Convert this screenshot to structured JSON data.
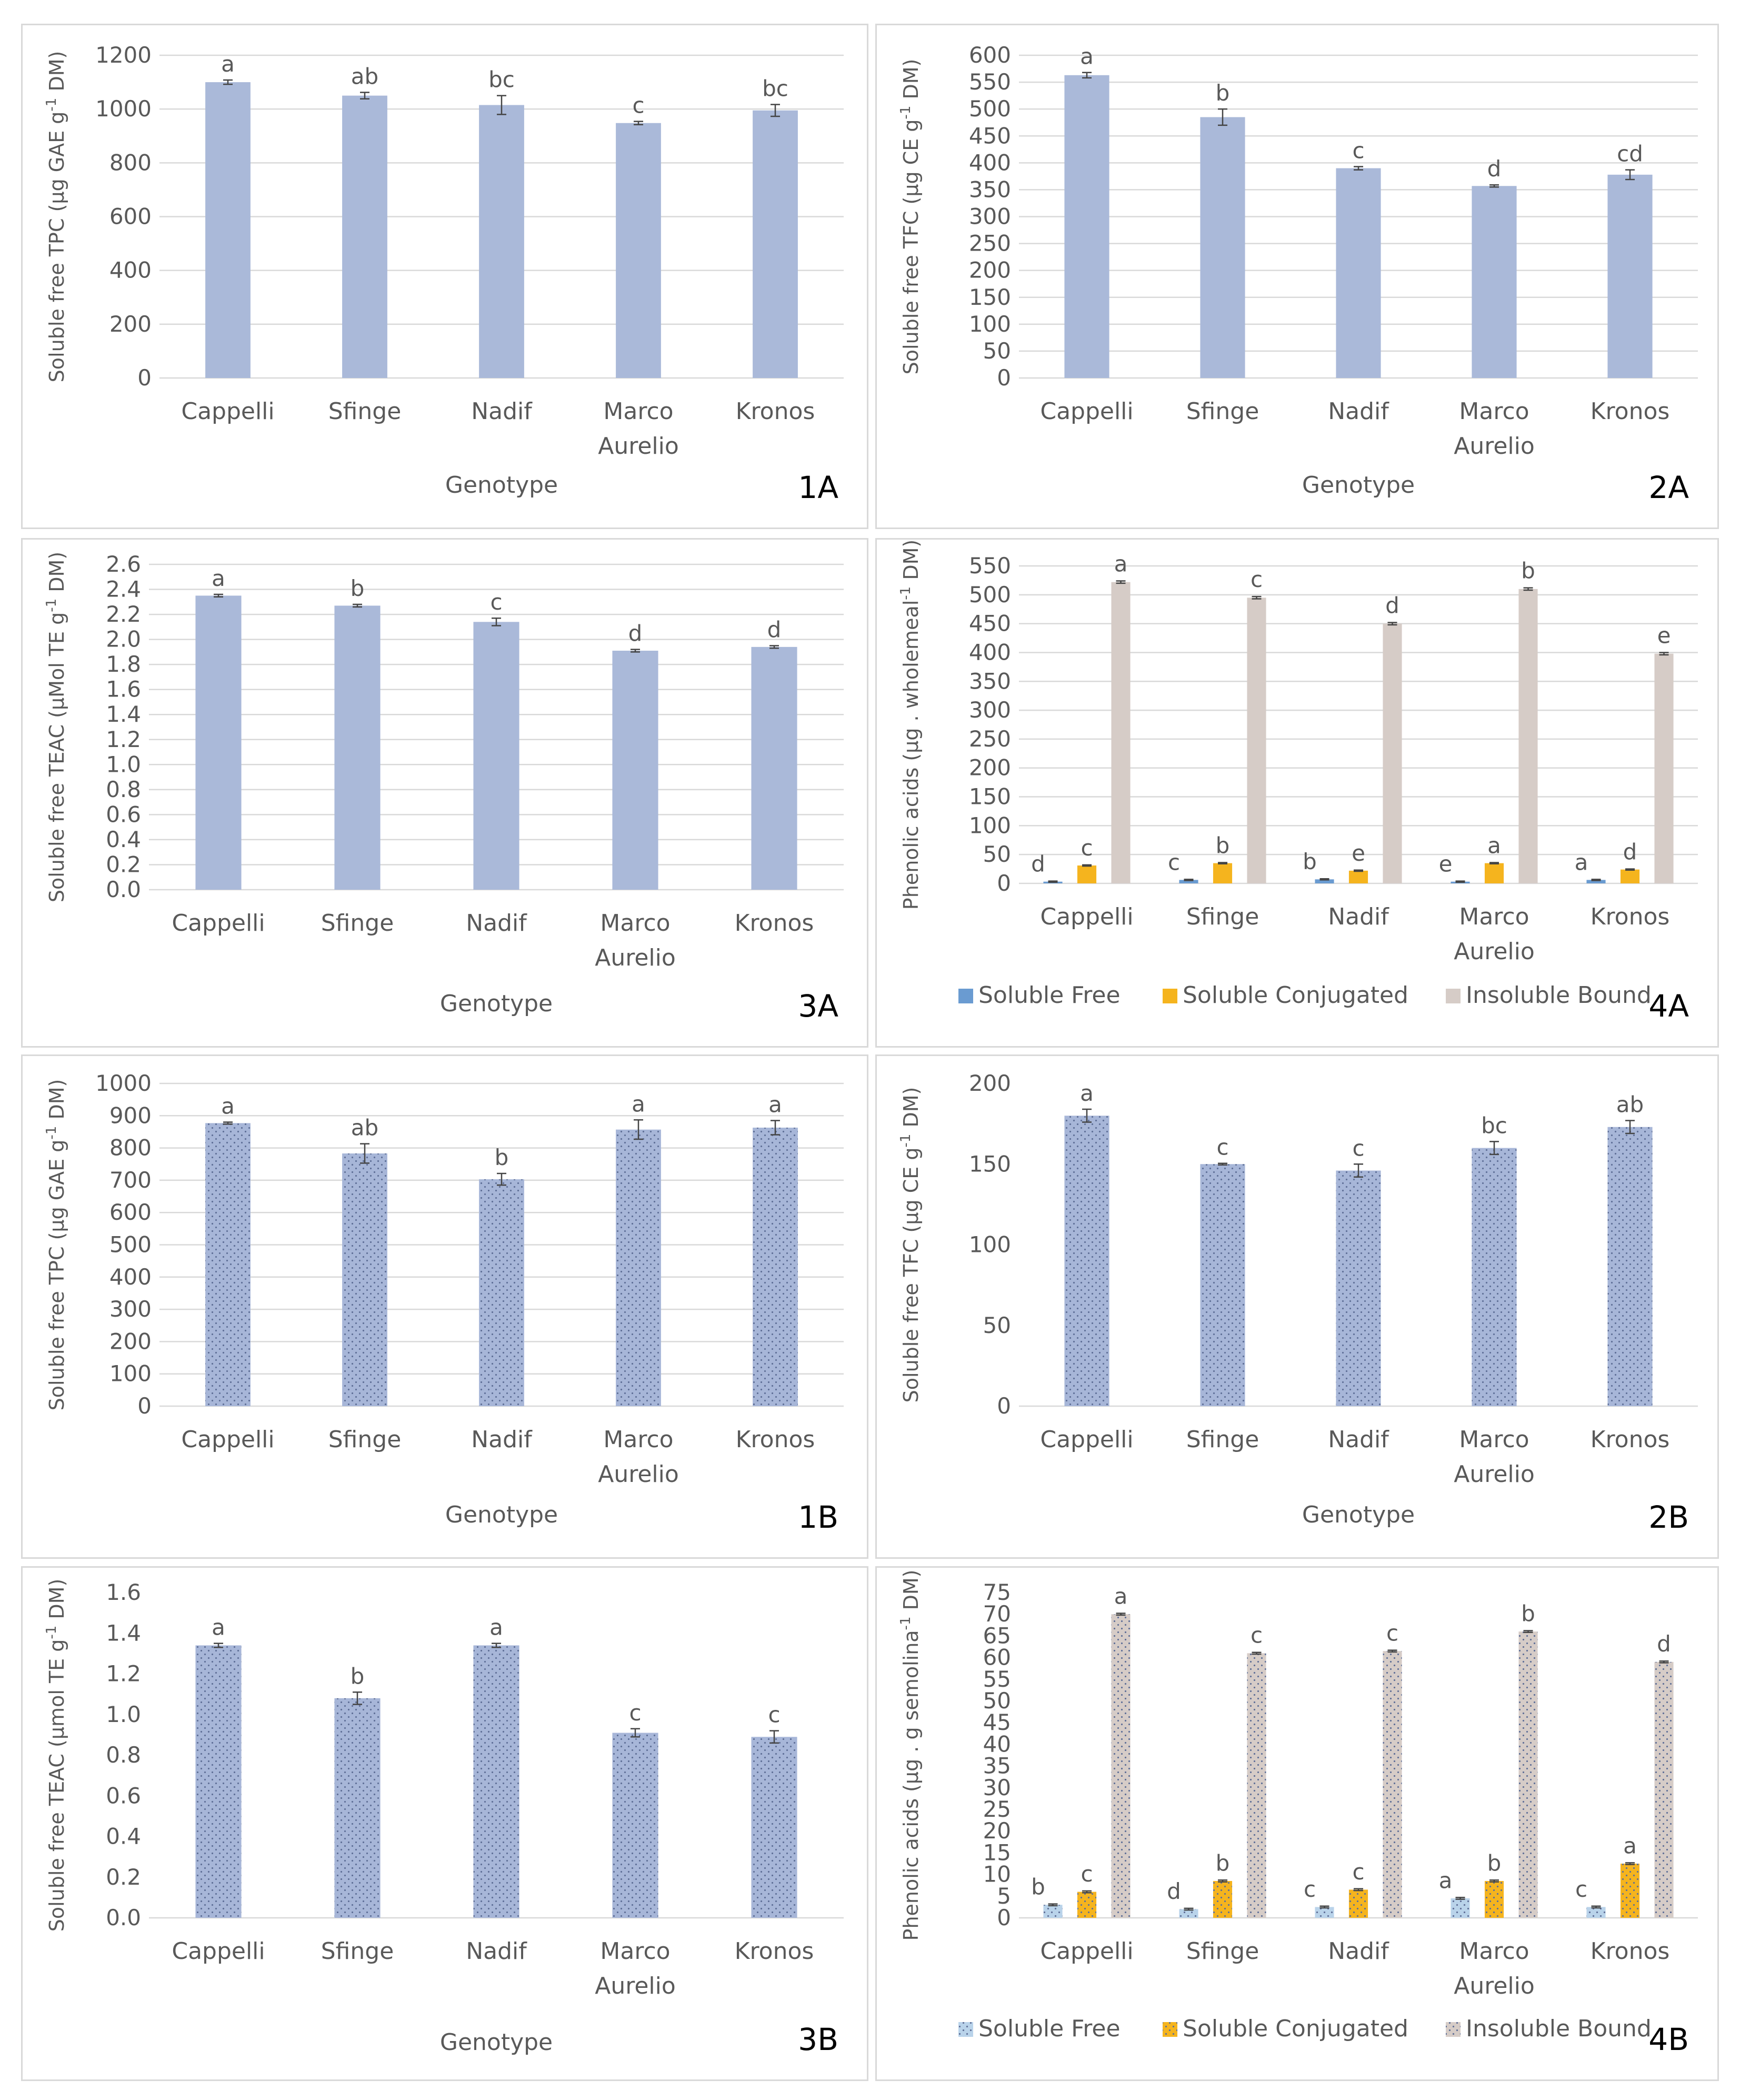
{
  "colors": {
    "bar_a": "#aab9d9",
    "bar_b": "#a7b6d8",
    "soluble_free_a": "#6a9bd1",
    "soluble_free_b": "#b9d3ea",
    "soluble_conjugated": "#f5b41e",
    "insoluble_bound": "#d6ccc7",
    "grid": "#d9d9d9",
    "text": "#595959"
  },
  "chart_data": [
    {
      "id": "1A",
      "type": "bar",
      "panel_label": "1A",
      "pattern": "solid",
      "categories": [
        [
          "Cappelli"
        ],
        [
          "Sfinge"
        ],
        [
          "Nadif"
        ],
        [
          "Marco",
          "Aurelio"
        ],
        [
          "Kronos"
        ]
      ],
      "values": [
        1100,
        1050,
        1015,
        948,
        995
      ],
      "errors": [
        8,
        12,
        35,
        6,
        22
      ],
      "letters": [
        "a",
        "ab",
        "bc",
        "c",
        "bc"
      ],
      "ylim": [
        0,
        1200
      ],
      "yticks": [
        0,
        200,
        400,
        600,
        800,
        1000,
        1200
      ],
      "ylabel_main": "Soluble free TPC (µg GAE g",
      "ylabel_sup": "-1",
      "ylabel_end": " DM)",
      "xlabel": "Genotype",
      "grid": true
    },
    {
      "id": "2A",
      "type": "bar",
      "panel_label": "2A",
      "pattern": "solid",
      "categories": [
        [
          "Cappelli"
        ],
        [
          "Sfinge"
        ],
        [
          "Nadif"
        ],
        [
          "Marco",
          "Aurelio"
        ],
        [
          "Kronos"
        ]
      ],
      "values": [
        563,
        485,
        390,
        357,
        378
      ],
      "errors": [
        5,
        15,
        3,
        2,
        9
      ],
      "letters": [
        "a",
        "b",
        "c",
        "d",
        "cd"
      ],
      "ylim": [
        0,
        600
      ],
      "yticks": [
        0,
        50,
        100,
        150,
        200,
        250,
        300,
        350,
        400,
        450,
        500,
        550,
        600
      ],
      "ylabel_main": "Soluble free TFC (µg CE g",
      "ylabel_sup": "-1",
      "ylabel_end": " DM)",
      "xlabel": "Genotype",
      "grid": true
    },
    {
      "id": "3A",
      "type": "bar",
      "panel_label": "3A",
      "pattern": "solid",
      "categories": [
        [
          "Cappelli"
        ],
        [
          "Sfinge"
        ],
        [
          "Nadif"
        ],
        [
          "Marco",
          "Aurelio"
        ],
        [
          "Kronos"
        ]
      ],
      "values": [
        2.35,
        2.27,
        2.14,
        1.91,
        1.94
      ],
      "errors": [
        0.01,
        0.01,
        0.03,
        0.01,
        0.01
      ],
      "letters": [
        "a",
        "b",
        "c",
        "d",
        "d"
      ],
      "ylim": [
        0,
        2.6
      ],
      "yticks": [
        "0.0",
        "0.2",
        "0.4",
        "0.6",
        "0.8",
        "1.0",
        "1.2",
        "1.4",
        "1.6",
        "1.8",
        "2.0",
        "2.2",
        "2.4",
        "2.6"
      ],
      "ylabel_main": "Soluble free TEAC (µMol TE g",
      "ylabel_sup": "-1",
      "ylabel_end": " DM)",
      "xlabel": "Genotype",
      "grid": true
    },
    {
      "id": "4A",
      "type": "bar",
      "panel_label": "4A",
      "pattern": "solid",
      "categories": [
        [
          "Cappelli"
        ],
        [
          "Sfinge"
        ],
        [
          "Nadif"
        ],
        [
          "Marco",
          "Aurelio"
        ],
        [
          "Kronos"
        ]
      ],
      "series": [
        {
          "name": "Soluble Free",
          "values": [
            3,
            6,
            7,
            3,
            6
          ],
          "errors": [
            1,
            1,
            1,
            1,
            1
          ],
          "letters": [
            "d",
            "c",
            "b",
            "e",
            "a"
          ]
        },
        {
          "name": "Soluble Conjugated",
          "values": [
            31,
            35,
            22,
            35,
            24
          ],
          "errors": [
            1,
            1,
            1,
            1,
            1
          ],
          "letters": [
            "c",
            "b",
            "e",
            "a",
            "d"
          ]
        },
        {
          "name": "Insoluble Bound",
          "values": [
            522,
            495,
            450,
            510,
            398
          ],
          "errors": [
            2,
            2,
            2,
            2,
            2
          ],
          "letters": [
            "a",
            "c",
            "d",
            "b",
            "e"
          ]
        }
      ],
      "ylim": [
        0,
        550
      ],
      "yticks": [
        0,
        50,
        100,
        150,
        200,
        250,
        300,
        350,
        400,
        450,
        500,
        550
      ],
      "ylabel_main": "Phenolic acids (µg . wholemeal",
      "ylabel_sup": "-1",
      "ylabel_end": " DM)",
      "legend": "bottom",
      "grid": true
    },
    {
      "id": "1B",
      "type": "bar",
      "panel_label": "1B",
      "pattern": "dotted",
      "categories": [
        [
          "Cappelli"
        ],
        [
          "Sfinge"
        ],
        [
          "Nadif"
        ],
        [
          "Marco",
          "Aurelio"
        ],
        [
          "Kronos"
        ]
      ],
      "values": [
        877,
        783,
        703,
        857,
        863
      ],
      "errors": [
        3,
        30,
        18,
        30,
        22
      ],
      "letters": [
        "a",
        "ab",
        "b",
        "a",
        "a"
      ],
      "ylim": [
        0,
        1000
      ],
      "yticks": [
        0,
        100,
        200,
        300,
        400,
        500,
        600,
        700,
        800,
        900,
        1000
      ],
      "ylabel_main": "Soluble free TPC (µg GAE g",
      "ylabel_sup": "-1",
      "ylabel_end": " DM)",
      "xlabel": "Genotype",
      "grid": true
    },
    {
      "id": "2B",
      "type": "bar",
      "panel_label": "2B",
      "pattern": "dotted",
      "categories": [
        [
          "Cappelli"
        ],
        [
          "Sfinge"
        ],
        [
          "Nadif"
        ],
        [
          "Marco",
          "Aurelio"
        ],
        [
          "Kronos"
        ]
      ],
      "values": [
        180,
        150,
        146,
        160,
        173
      ],
      "errors": [
        4,
        0.5,
        4,
        4,
        4
      ],
      "letters": [
        "a",
        "c",
        "c",
        "bc",
        "ab"
      ],
      "ylim": [
        0,
        200
      ],
      "yticks": [
        0,
        50,
        100,
        150,
        200
      ],
      "ylabel_main": "Soluble free TFC (µg CE g",
      "ylabel_sup": "-1",
      "ylabel_end": " DM)",
      "xlabel": "Genotype",
      "grid": false
    },
    {
      "id": "3B",
      "type": "bar",
      "panel_label": "3B",
      "pattern": "dotted",
      "categories": [
        [
          "Cappelli"
        ],
        [
          "Sfinge"
        ],
        [
          "Nadif"
        ],
        [
          "Marco",
          "Aurelio"
        ],
        [
          "Kronos"
        ]
      ],
      "values": [
        1.34,
        1.08,
        1.34,
        0.91,
        0.89
      ],
      "errors": [
        0.01,
        0.03,
        0.01,
        0.02,
        0.03
      ],
      "letters": [
        "a",
        "b",
        "a",
        "c",
        "c"
      ],
      "ylim": [
        0,
        1.6
      ],
      "yticks": [
        "0.0",
        "0.2",
        "0.4",
        "0.6",
        "0.8",
        "1.0",
        "1.2",
        "1.4",
        "1.6"
      ],
      "ylabel_main": "Soluble free TEAC (µmol TE g",
      "ylabel_sup": "-1",
      "ylabel_end": " DM)",
      "xlabel": "Genotype",
      "grid": false
    },
    {
      "id": "4B",
      "type": "bar",
      "panel_label": "4B",
      "pattern": "dotted",
      "categories": [
        [
          "Cappelli"
        ],
        [
          "Sfinge"
        ],
        [
          "Nadif"
        ],
        [
          "Marco",
          "Aurelio"
        ],
        [
          "Kronos"
        ]
      ],
      "series": [
        {
          "name": "Soluble Free",
          "values": [
            3,
            2,
            2.5,
            4.5,
            2.5
          ],
          "errors": [
            0.2,
            0.2,
            0.2,
            0.2,
            0.2
          ],
          "letters": [
            "b",
            "d",
            "c",
            "a",
            "c"
          ]
        },
        {
          "name": "Soluble Conjugated",
          "values": [
            6,
            8.5,
            6.5,
            8.5,
            12.5
          ],
          "errors": [
            0.2,
            0.2,
            0.2,
            0.2,
            0.2
          ],
          "letters": [
            "c",
            "b",
            "c",
            "b",
            "a"
          ]
        },
        {
          "name": "Insoluble Bound",
          "values": [
            70,
            61,
            61.5,
            66,
            59
          ],
          "errors": [
            0.2,
            0.2,
            0.2,
            0.2,
            0.2
          ],
          "letters": [
            "a",
            "c",
            "c",
            "b",
            "d"
          ]
        }
      ],
      "ylim": [
        0,
        75
      ],
      "yticks": [
        0,
        5,
        10,
        15,
        20,
        25,
        30,
        35,
        40,
        45,
        50,
        55,
        60,
        65,
        70,
        75
      ],
      "ylabel_main": "Phenolic acids (µg . g semolina",
      "ylabel_sup": "-1",
      "ylabel_end": " DM)",
      "legend": "bottom",
      "grid": false
    }
  ]
}
